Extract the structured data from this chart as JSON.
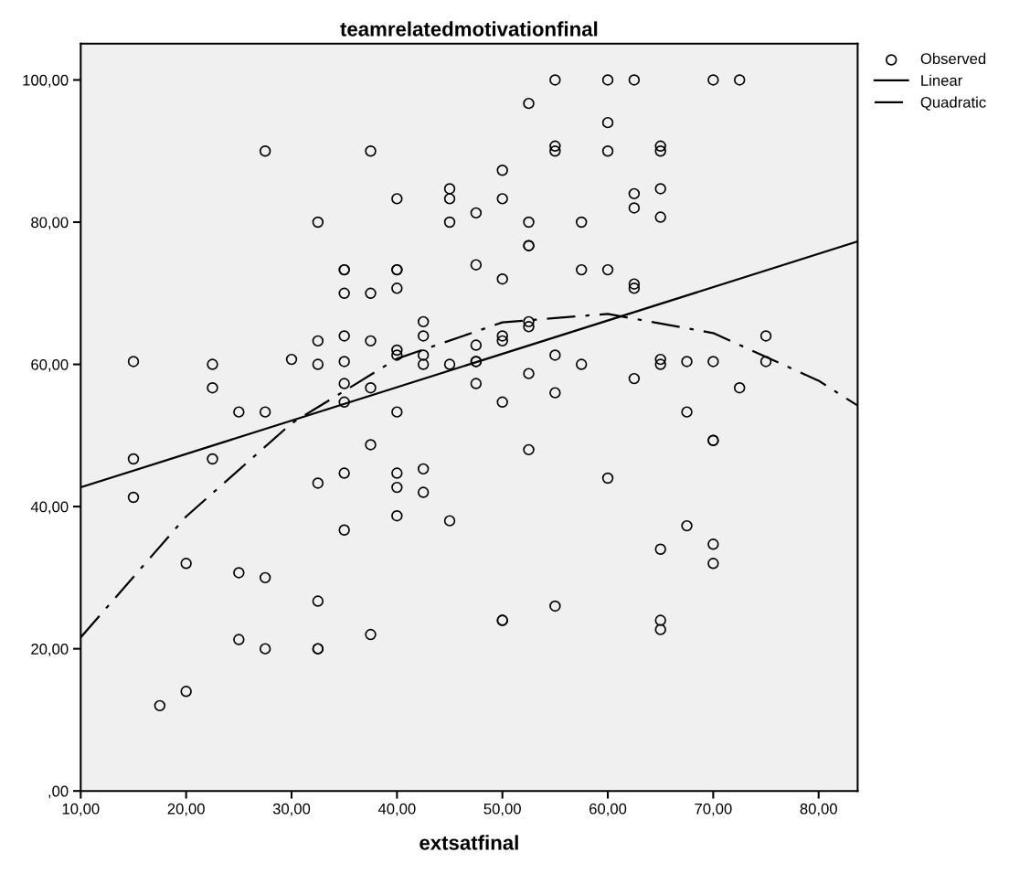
{
  "chart_data": {
    "type": "scatter",
    "title": "teamrelatedmotivationfinal",
    "xlabel": "extsatfinal",
    "xlim": [
      10,
      83.7
    ],
    "ylim": [
      0,
      105.1
    ],
    "xticks": [
      {
        "value": 10,
        "label": "10,00"
      },
      {
        "value": 20,
        "label": "20,00"
      },
      {
        "value": 30,
        "label": "30,00"
      },
      {
        "value": 40,
        "label": "40,00"
      },
      {
        "value": 50,
        "label": "50,00"
      },
      {
        "value": 60,
        "label": "60,00"
      },
      {
        "value": 70,
        "label": "70,00"
      },
      {
        "value": 80,
        "label": "80,00"
      }
    ],
    "yticks": [
      {
        "value": 0,
        "label": ",00"
      },
      {
        "value": 20,
        "label": "20,00"
      },
      {
        "value": 40,
        "label": "40,00"
      },
      {
        "value": 60,
        "label": "60,00"
      },
      {
        "value": 80,
        "label": "80,00"
      },
      {
        "value": 100,
        "label": "100,00"
      }
    ],
    "grid": false,
    "legend": "top right",
    "series": [
      {
        "name": "Observed",
        "marker": "circle",
        "color": "#000000",
        "x": [
          15,
          15,
          15,
          17.5,
          20,
          20,
          22.5,
          22.5,
          22.5,
          25,
          25,
          25,
          27.5,
          27.5,
          27.5,
          27.5,
          30,
          32.5,
          32.5,
          32.5,
          32.5,
          32.5,
          32.5,
          32.5,
          35,
          35,
          35,
          35,
          35,
          35,
          35,
          35,
          35,
          37.5,
          37.5,
          37.5,
          37.5,
          37.5,
          37.5,
          40,
          40,
          40,
          40,
          40,
          40,
          40,
          40,
          40,
          40,
          42.5,
          42.5,
          42.5,
          42.5,
          42.5,
          42.5,
          45,
          45,
          45,
          45,
          45,
          47.5,
          47.5,
          47.5,
          47.5,
          47.5,
          47.5,
          50,
          50,
          50,
          50,
          50,
          50,
          50,
          50,
          52.5,
          52.5,
          52.5,
          52.5,
          52.5,
          52.5,
          52.5,
          52.5,
          55,
          55,
          55,
          55,
          55,
          55,
          57.5,
          57.5,
          57.5,
          60,
          60,
          60,
          60,
          60,
          62.5,
          62.5,
          62.5,
          62.5,
          62.5,
          62.5,
          65,
          65,
          65,
          65,
          65,
          65,
          65,
          65,
          65,
          67.5,
          67.5,
          67.5,
          70,
          70,
          70,
          70,
          70,
          70,
          72.5,
          72.5,
          75,
          75
        ],
        "values": [
          60.4,
          46.7,
          41.3,
          12,
          32,
          14,
          60,
          56.7,
          46.7,
          53.3,
          30.7,
          21.3,
          90,
          53.3,
          30,
          20,
          60.7,
          80,
          63.3,
          60,
          43.3,
          26.7,
          20,
          20,
          73.3,
          73.3,
          70,
          64,
          60.4,
          57.3,
          54.7,
          44.7,
          36.7,
          90,
          70,
          63.3,
          56.7,
          48.7,
          22,
          83.3,
          73.3,
          73.3,
          70.7,
          62,
          61.3,
          53.3,
          44.7,
          42.7,
          38.7,
          66,
          64,
          61.3,
          60,
          45.3,
          42,
          84.7,
          83.3,
          80,
          60,
          38,
          81.3,
          74,
          62.7,
          60.4,
          60.4,
          57.3,
          87.3,
          83.3,
          72,
          64,
          63.3,
          54.7,
          24,
          24,
          96.7,
          80,
          76.7,
          76.7,
          66,
          65.3,
          58.7,
          48,
          100,
          90.7,
          90,
          61.3,
          56,
          26,
          80,
          73.3,
          60,
          100,
          94,
          90,
          73.3,
          44,
          100,
          84,
          82,
          71.3,
          70.7,
          58,
          90.7,
          90,
          84.7,
          80.7,
          60.7,
          60,
          34,
          24,
          22.7,
          60.4,
          53.3,
          37.3,
          100,
          60.4,
          49.3,
          49.3,
          34.7,
          32,
          100,
          56.7,
          64,
          60.4
        ]
      },
      {
        "name": "Linear",
        "type": "line",
        "line_style": "solid",
        "color": "#000000",
        "x": [
          10,
          83.7
        ],
        "values": [
          42.7,
          77.3
        ]
      },
      {
        "name": "Quadratic",
        "type": "line",
        "line_style": "dashdot",
        "color": "#000000",
        "x": [
          10,
          20,
          30,
          40,
          50,
          60,
          70,
          80,
          83.7
        ],
        "values": [
          21.6,
          38.6,
          51.7,
          60.8,
          65.9,
          67.1,
          64.4,
          57.7,
          54.2
        ]
      }
    ]
  }
}
